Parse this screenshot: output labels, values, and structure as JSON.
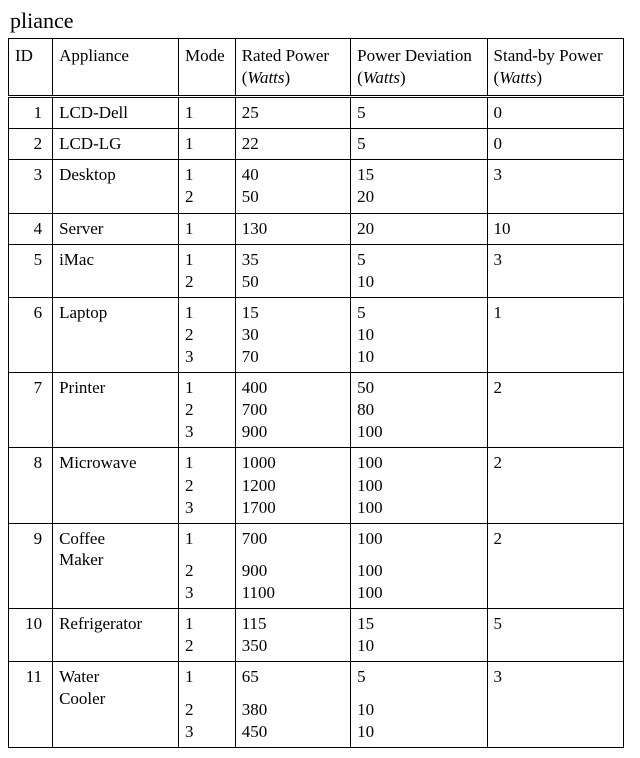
{
  "caption": "pliance",
  "columns": {
    "id": "ID",
    "appliance": "Appliance",
    "mode": "Mode",
    "rated_power": "Rated Power",
    "power_deviation": "Power Deviation",
    "standby_power": "Stand-by Power",
    "unit": "Watts"
  },
  "rows": [
    {
      "id": "1",
      "appliance": "LCD-Dell",
      "modes": [
        "1"
      ],
      "rated": [
        "25"
      ],
      "dev": [
        "5"
      ],
      "standby": "0"
    },
    {
      "id": "2",
      "appliance": "LCD-LG",
      "modes": [
        "1"
      ],
      "rated": [
        "22"
      ],
      "dev": [
        "5"
      ],
      "standby": "0"
    },
    {
      "id": "3",
      "appliance": "Desktop",
      "modes": [
        "1",
        "2"
      ],
      "rated": [
        "40",
        "50"
      ],
      "dev": [
        "15",
        "20"
      ],
      "standby": "3"
    },
    {
      "id": "4",
      "appliance": "Server",
      "modes": [
        "1"
      ],
      "rated": [
        "130"
      ],
      "dev": [
        "20"
      ],
      "standby": "10"
    },
    {
      "id": "5",
      "appliance": "iMac",
      "modes": [
        "1",
        "2"
      ],
      "rated": [
        "35",
        "50"
      ],
      "dev": [
        "5",
        "10"
      ],
      "standby": "3"
    },
    {
      "id": "6",
      "appliance": "Laptop",
      "modes": [
        "1",
        "2",
        "3"
      ],
      "rated": [
        "15",
        "30",
        "70"
      ],
      "dev": [
        "5",
        "10",
        "10"
      ],
      "standby": "1"
    },
    {
      "id": "7",
      "appliance": "Printer",
      "modes": [
        "1",
        "2",
        "3"
      ],
      "rated": [
        "400",
        "700",
        "900"
      ],
      "dev": [
        "50",
        "80",
        "100"
      ],
      "standby": "2"
    },
    {
      "id": "8",
      "appliance": "Microwave",
      "modes": [
        "1",
        "2",
        "3"
      ],
      "rated": [
        "1000",
        "1200",
        "1700"
      ],
      "dev": [
        "100",
        "100",
        "100"
      ],
      "standby": "2"
    },
    {
      "id": "9",
      "appliance": "Coffee Maker",
      "modes": [
        "1",
        "2",
        "3"
      ],
      "rated": [
        "700",
        "900",
        "1100"
      ],
      "dev": [
        "100",
        "100",
        "100"
      ],
      "standby": "2",
      "gap_after_first": true
    },
    {
      "id": "10",
      "appliance": "Refrigerator",
      "modes": [
        "1",
        "2"
      ],
      "rated": [
        "115",
        "350"
      ],
      "dev": [
        "15",
        "10"
      ],
      "standby": "5"
    },
    {
      "id": "11",
      "appliance": "Water Cooler",
      "modes": [
        "1",
        "2",
        "3"
      ],
      "rated": [
        "65",
        "380",
        "450"
      ],
      "dev": [
        "5",
        "10",
        "10"
      ],
      "standby": "3",
      "gap_after_first": true
    }
  ],
  "style": {
    "font_family": "Times New Roman",
    "text_color": "#000000",
    "border_color": "#000000",
    "background": "#ffffff"
  }
}
